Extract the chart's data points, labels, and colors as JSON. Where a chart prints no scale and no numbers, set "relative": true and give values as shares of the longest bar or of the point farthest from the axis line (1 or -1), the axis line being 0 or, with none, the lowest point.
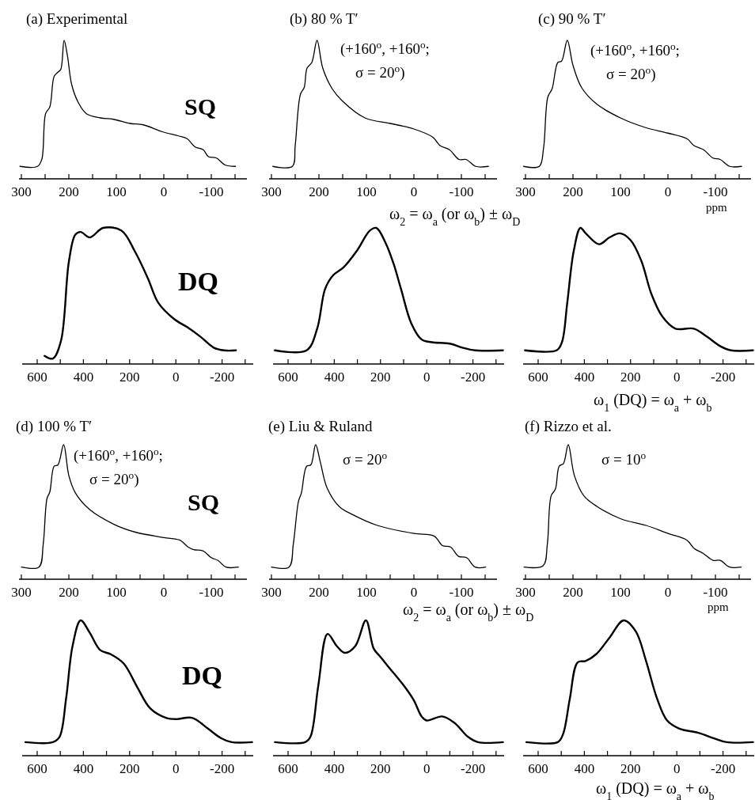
{
  "chart_data": [
    {
      "type": "line",
      "title": "(a) Experimental",
      "annotations": [
        "SQ"
      ],
      "relative": true,
      "xlim": [
        305,
        -175
      ],
      "xticks": [
        300,
        {
          "value": 250,
          "label": null
        },
        200,
        {
          "value": 150,
          "label": null
        },
        100,
        {
          "value": 50,
          "label": null
        },
        0,
        {
          "value": -50,
          "label": null
        },
        -100,
        {
          "value": -150,
          "label": null
        }
      ],
      "series": [
        {
          "color": "#000000",
          "x": [
            303,
            266,
            257,
            249,
            240,
            231,
            223,
            217,
            210,
            203,
            194,
            180,
            163,
            134,
            106,
            71,
            43,
            3,
            -31,
            -49,
            -66,
            -83,
            -94,
            -111,
            -129,
            -151
          ],
          "values": [
            0.09,
            0.09,
            0.14,
            0.47,
            0.52,
            0.74,
            0.77,
            0.79,
            1,
            0.89,
            0.68,
            0.55,
            0.47,
            0.44,
            0.43,
            0.4,
            0.39,
            0.34,
            0.31,
            0.29,
            0.23,
            0.21,
            0.16,
            0.15,
            0.1,
            0.09
          ]
        }
      ]
    },
    {
      "type": "line",
      "title": "(b) 80 % T′",
      "annotations": [
        "(+160$^{o}$, +160$^{o}$;",
        "σ = 20$^{o}$)"
      ],
      "xlabel": "ω$_{2}$  = ω$_{a}$ (or ω$_{b}$) ± ω$_{D}$",
      "relative": true,
      "xlim": [
        305,
        -175
      ],
      "xticks": [
        300,
        {
          "value": 250,
          "label": null
        },
        200,
        {
          "value": 150,
          "label": null
        },
        100,
        {
          "value": 50,
          "label": null
        },
        0,
        {
          "value": -50,
          "label": null
        },
        -100,
        {
          "value": -150,
          "label": null
        }
      ],
      "series": [
        {
          "color": "#000000",
          "x": [
            297,
            256,
            250,
            239,
            231,
            225,
            215,
            204,
            192,
            172,
            150,
            103,
            50,
            0,
            -40,
            -55,
            -75,
            -95,
            -110,
            -130,
            -157
          ],
          "values": [
            0.09,
            0.09,
            0.24,
            0.61,
            0.66,
            0.8,
            0.84,
            1,
            0.8,
            0.65,
            0.56,
            0.44,
            0.4,
            0.36,
            0.3,
            0.24,
            0.21,
            0.14,
            0.14,
            0.09,
            0.09
          ]
        }
      ]
    },
    {
      "type": "line",
      "title": "(c) 90 % T′",
      "annotations": [
        "(+160$^{o}$, +160$^{o}$;",
        "σ = 20$^{o}$)"
      ],
      "xlabel": "ppm",
      "relative": true,
      "xlim": [
        305,
        -175
      ],
      "xticks": [
        300,
        {
          "value": 250,
          "label": null
        },
        200,
        {
          "value": 150,
          "label": null
        },
        100,
        {
          "value": 50,
          "label": null
        },
        0,
        {
          "value": -50,
          "label": null
        },
        -100,
        {
          "value": -150,
          "label": null
        }
      ],
      "series": [
        {
          "color": "#000000",
          "x": [
            304,
            271,
            262,
            253,
            244,
            232,
            224,
            212,
            200,
            182,
            150,
            100,
            47,
            0,
            -40,
            -55,
            -75,
            -95,
            -110,
            -130,
            -155
          ],
          "values": [
            0.09,
            0.09,
            0.22,
            0.59,
            0.65,
            0.84,
            0.85,
            1,
            0.82,
            0.66,
            0.54,
            0.44,
            0.37,
            0.33,
            0.29,
            0.24,
            0.21,
            0.15,
            0.14,
            0.09,
            0.09
          ]
        }
      ]
    },
    {
      "type": "line",
      "annotations": [
        "DQ"
      ],
      "relative": true,
      "xlim": [
        665,
        -335
      ],
      "xticks": [
        600,
        {
          "value": 500,
          "label": null
        },
        400,
        {
          "value": 300,
          "label": null
        },
        200,
        {
          "value": 100,
          "label": null
        },
        0,
        {
          "value": -100,
          "label": null
        },
        -200,
        {
          "value": -300,
          "label": null
        }
      ],
      "series": [
        {
          "color": "#000000",
          "x": [
            568,
            532,
            497,
            463,
            435,
            412,
            372,
            315,
            235,
            178,
            121,
            76,
            7,
            -50,
            -107,
            -164,
            -209,
            -260
          ],
          "values": [
            0.06,
            0.04,
            0.17,
            0.75,
            0.95,
            0.97,
            0.93,
            1,
            0.98,
            0.83,
            0.63,
            0.45,
            0.33,
            0.27,
            0.2,
            0.12,
            0.1,
            0.1
          ]
        }
      ]
    },
    {
      "type": "line",
      "relative": true,
      "xlim": [
        665,
        -335
      ],
      "xticks": [
        600,
        {
          "value": 500,
          "label": null
        },
        400,
        {
          "value": 300,
          "label": null
        },
        200,
        {
          "value": 100,
          "label": null
        },
        0,
        {
          "value": -100,
          "label": null
        },
        -200,
        {
          "value": -300,
          "label": null
        }
      ],
      "series": [
        {
          "color": "#000000",
          "x": [
            657,
            520,
            474,
            440,
            406,
            360,
            303,
            246,
            218,
            178,
            144,
            111,
            67,
            22,
            -22,
            -100,
            -155,
            -211,
            -330
          ],
          "values": [
            0.1,
            0.1,
            0.26,
            0.55,
            0.65,
            0.71,
            0.83,
            0.98,
            1,
            0.89,
            0.74,
            0.55,
            0.3,
            0.18,
            0.16,
            0.15,
            0.12,
            0.1,
            0.1
          ]
        }
      ]
    },
    {
      "type": "line",
      "xlabel": "ω$_{1}$ (DQ) = ω$_{a}$ + ω$_{b}$",
      "relative": true,
      "xlim": [
        665,
        -335
      ],
      "xticks": [
        600,
        {
          "value": 500,
          "label": null
        },
        400,
        {
          "value": 300,
          "label": null
        },
        200,
        {
          "value": 100,
          "label": null
        },
        0,
        {
          "value": -100,
          "label": null
        },
        -200,
        {
          "value": -300,
          "label": null
        }
      ],
      "series": [
        {
          "color": "#000000",
          "x": [
            657,
            520,
            497,
            474,
            446,
            417,
            394,
            337,
            291,
            246,
            200,
            154,
            109,
            63,
            6,
            -74,
            -131,
            -189,
            -234,
            -330
          ],
          "values": [
            0.1,
            0.1,
            0.16,
            0.45,
            0.83,
            1,
            0.96,
            0.88,
            0.93,
            0.96,
            0.91,
            0.76,
            0.51,
            0.35,
            0.26,
            0.26,
            0.2,
            0.13,
            0.1,
            0.1
          ]
        }
      ]
    },
    {
      "type": "line",
      "title": "(d) 100 % T′",
      "annotations": [
        "(+160$^{o}$, +160$^{o}$;",
        "σ = 20$^{o}$)",
        "SQ"
      ],
      "relative": true,
      "xlim": [
        305,
        -175
      ],
      "xticks": [
        300,
        {
          "value": 250,
          "label": null
        },
        200,
        {
          "value": 150,
          "label": null
        },
        100,
        {
          "value": 50,
          "label": null
        },
        0,
        {
          "value": -50,
          "label": null
        },
        -100,
        {
          "value": -150,
          "label": null
        }
      ],
      "series": [
        {
          "color": "#000000",
          "x": [
            300,
            263,
            254,
            246,
            240,
            231,
            223,
            211,
            200,
            186,
            157,
            106,
            60,
            0,
            -34,
            -51,
            -63,
            -83,
            -100,
            -114,
            -131,
            -157
          ],
          "values": [
            0.09,
            0.09,
            0.26,
            0.6,
            0.65,
            0.84,
            0.85,
            1,
            0.77,
            0.64,
            0.52,
            0.41,
            0.35,
            0.31,
            0.29,
            0.24,
            0.22,
            0.21,
            0.16,
            0.14,
            0.09,
            0.09
          ]
        }
      ]
    },
    {
      "type": "line",
      "title": "(e) Liu & Ruland",
      "annotations": [
        "σ = 20$^{o}$"
      ],
      "xlabel": "ω$_{2}$  = ω$_{a}$ (or ω$_{b}$) ± ω$_{D}$",
      "relative": true,
      "xlim": [
        305,
        -175
      ],
      "xticks": [
        300,
        {
          "value": 250,
          "label": null
        },
        200,
        {
          "value": 150,
          "label": null
        },
        100,
        {
          "value": 50,
          "label": null
        },
        0,
        {
          "value": -50,
          "label": null
        },
        -100,
        {
          "value": -150,
          "label": null
        }
      ],
      "series": [
        {
          "color": "#000000",
          "x": [
            300,
            263,
            254,
            243,
            237,
            226,
            217,
            207,
            197,
            183,
            157,
            129,
            77,
            0,
            -43,
            -60,
            -77,
            -94,
            -111,
            -129,
            -151
          ],
          "values": [
            0.09,
            0.09,
            0.26,
            0.58,
            0.64,
            0.84,
            0.85,
            1,
            0.87,
            0.68,
            0.54,
            0.48,
            0.4,
            0.34,
            0.32,
            0.25,
            0.24,
            0.17,
            0.16,
            0.09,
            0.09
          ]
        }
      ]
    },
    {
      "type": "line",
      "title": "(f) Rizzo et al.",
      "annotations": [
        "σ = 10$^{o}$"
      ],
      "xlabel": "ppm",
      "relative": true,
      "xlim": [
        305,
        -175
      ],
      "xticks": [
        300,
        {
          "value": 250,
          "label": null
        },
        200,
        {
          "value": 150,
          "label": null
        },
        100,
        {
          "value": 50,
          "label": null
        },
        0,
        {
          "value": -50,
          "label": null
        },
        -100,
        {
          "value": -150,
          "label": null
        }
      ],
      "series": [
        {
          "color": "#000000",
          "x": [
            303,
            263,
            254,
            246,
            237,
            229,
            220,
            210,
            197,
            177,
            149,
            100,
            46,
            0,
            -40,
            -55,
            -75,
            -95,
            -110,
            -130,
            -154
          ],
          "values": [
            0.09,
            0.1,
            0.26,
            0.62,
            0.67,
            0.84,
            0.86,
            1,
            0.77,
            0.62,
            0.54,
            0.45,
            0.4,
            0.34,
            0.29,
            0.23,
            0.19,
            0.14,
            0.14,
            0.09,
            0.09
          ]
        }
      ]
    },
    {
      "type": "line",
      "annotations": [
        "DQ"
      ],
      "relative": true,
      "xlim": [
        665,
        -335
      ],
      "xticks": [
        600,
        {
          "value": 500,
          "label": null
        },
        400,
        {
          "value": 300,
          "label": null
        },
        200,
        {
          "value": 100,
          "label": null
        },
        0,
        {
          "value": -100,
          "label": null
        },
        -200,
        {
          "value": -300,
          "label": null
        }
      ],
      "series": [
        {
          "color": "#000000",
          "x": [
            651,
            532,
            503,
            475,
            447,
            412,
            373,
            327,
            282,
            225,
            168,
            111,
            43,
            -2,
            -70,
            -139,
            -195,
            -241,
            -330
          ],
          "values": [
            0.1,
            0.1,
            0.14,
            0.42,
            0.81,
            1,
            0.91,
            0.78,
            0.75,
            0.68,
            0.51,
            0.35,
            0.28,
            0.27,
            0.28,
            0.2,
            0.13,
            0.1,
            0.1
          ]
        }
      ]
    },
    {
      "type": "line",
      "relative": true,
      "xlim": [
        665,
        -335
      ],
      "xticks": [
        600,
        {
          "value": 500,
          "label": null
        },
        400,
        {
          "value": 300,
          "label": null
        },
        200,
        {
          "value": 100,
          "label": null
        },
        0,
        {
          "value": -100,
          "label": null
        },
        -200,
        {
          "value": -300,
          "label": null
        }
      ],
      "series": [
        {
          "color": "#000000",
          "x": [
            657,
            526,
            503,
            469,
            429,
            389,
            354,
            309,
            263,
            229,
            200,
            167,
            100,
            56,
            22,
            0,
            -67,
            -122,
            -178,
            -222,
            -330
          ],
          "values": [
            0.1,
            0.1,
            0.14,
            0.52,
            0.9,
            0.81,
            0.76,
            0.81,
            1,
            0.79,
            0.73,
            0.66,
            0.52,
            0.41,
            0.29,
            0.26,
            0.29,
            0.24,
            0.14,
            0.1,
            0.1
          ]
        }
      ]
    },
    {
      "type": "line",
      "xlabel": "ω$_{1}$ (DQ) = ω$_{a}$ + ω$_{b}$",
      "relative": true,
      "xlim": [
        665,
        -335
      ],
      "xticks": [
        600,
        {
          "value": 500,
          "label": null
        },
        400,
        {
          "value": 300,
          "label": null
        },
        200,
        {
          "value": 100,
          "label": null
        },
        0,
        {
          "value": -100,
          "label": null
        },
        -200,
        {
          "value": -300,
          "label": null
        }
      ],
      "series": [
        {
          "color": "#000000",
          "x": [
            651,
            515,
            492,
            463,
            429,
            395,
            349,
            292,
            230,
            178,
            133,
            87,
            42,
            -11,
            -91,
            -159,
            -216,
            -330
          ],
          "values": [
            0.1,
            0.1,
            0.16,
            0.42,
            0.69,
            0.7,
            0.75,
            0.87,
            1,
            0.92,
            0.7,
            0.43,
            0.26,
            0.2,
            0.17,
            0.13,
            0.1,
            0.1
          ]
        }
      ]
    }
  ]
}
